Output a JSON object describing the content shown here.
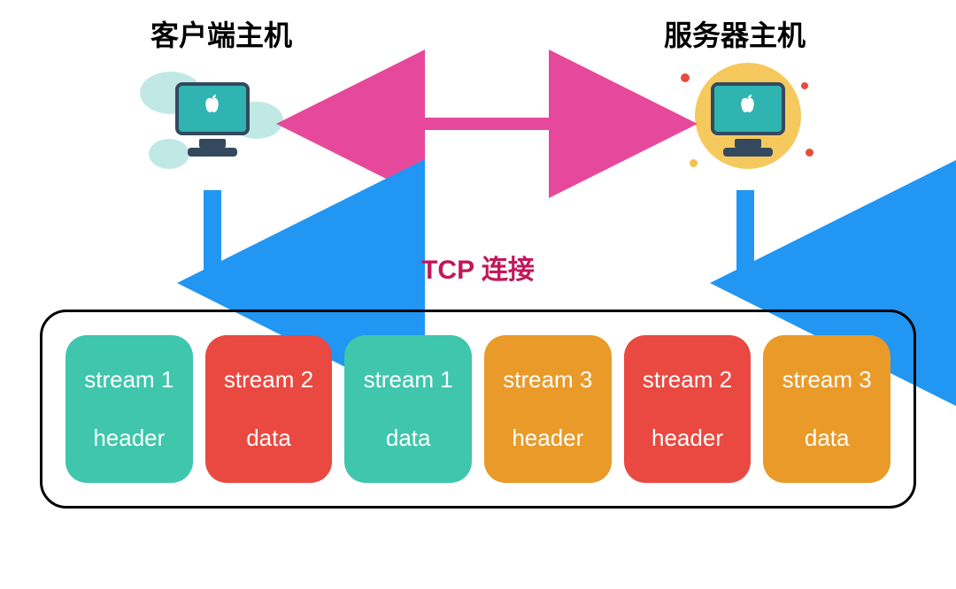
{
  "diagram": {
    "type": "network-diagram",
    "client_label": "客户端主机",
    "server_label": "服务器主机",
    "connection_label": "TCP 连接",
    "connection_label_color": "#c2185b",
    "bidir_arrow_color": "#e6499b",
    "down_arrow_color": "#2196f3",
    "box_border_color": "#000000",
    "client_icon": {
      "monitor_fill": "#2fb4b1",
      "monitor_border": "#35495e",
      "stand_color": "#35495e",
      "cloud_color": "#b9e7e3",
      "apple_glyph": "🍎",
      "apple_color": "#ffffff"
    },
    "server_icon": {
      "monitor_fill": "#2fb4b1",
      "monitor_border": "#35495e",
      "stand_color": "#35495e",
      "halo_color": "#f5c34d",
      "dot_colors": [
        "#e74c3c",
        "#e74c3c",
        "#f5c34d",
        "#e74c3c"
      ],
      "apple_glyph": "🍎",
      "apple_color": "#ffffff"
    },
    "frames": [
      {
        "stream": "stream 1",
        "part": "header",
        "color": "#3fc6ad"
      },
      {
        "stream": "stream 2",
        "part": "data",
        "color": "#ea4941"
      },
      {
        "stream": "stream 1",
        "part": "data",
        "color": "#3fc6ad"
      },
      {
        "stream": "stream 3",
        "part": "header",
        "color": "#e99a28"
      },
      {
        "stream": "stream 2",
        "part": "header",
        "color": "#ea4941"
      },
      {
        "stream": "stream 3",
        "part": "data",
        "color": "#e99a28"
      }
    ],
    "frame_text_color": "#ffffff",
    "frame_fontsize": 26,
    "label_fontsize": 32
  }
}
